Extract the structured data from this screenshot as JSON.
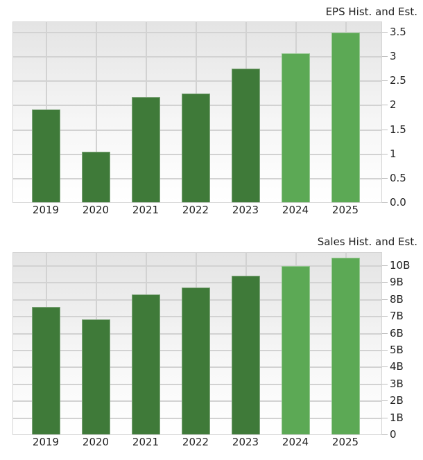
{
  "colors": {
    "historical": "#3f7a39",
    "estimate": "#5ca955",
    "grid": "#d2d2d2"
  },
  "chart_data": [
    {
      "type": "bar",
      "title": "EPS Hist. and Est.",
      "xlabel": "",
      "ylabel": "",
      "categories": [
        "2019",
        "2020",
        "2021",
        "2022",
        "2023",
        "2024",
        "2025"
      ],
      "values": [
        1.9,
        1.04,
        2.16,
        2.24,
        2.75,
        3.06,
        3.49
      ],
      "estimate_flags": [
        false,
        false,
        false,
        false,
        false,
        true,
        true
      ],
      "yticks": [
        "0.0",
        "0.5",
        "1",
        "1.5",
        "2",
        "2.5",
        "3",
        "3.5"
      ],
      "ylim": [
        0,
        3.6
      ],
      "grid": true,
      "y_axis_position": "right"
    },
    {
      "type": "bar",
      "title": "Sales Hist. and Est.",
      "xlabel": "",
      "ylabel": "",
      "categories": [
        "2019",
        "2020",
        "2021",
        "2022",
        "2023",
        "2024",
        "2025"
      ],
      "values": [
        7.54,
        6.8,
        8.26,
        8.67,
        9.39,
        9.96,
        10.46
      ],
      "units": "B",
      "estimate_flags": [
        false,
        false,
        false,
        false,
        false,
        true,
        true
      ],
      "yticks": [
        "0",
        "1B",
        "2B",
        "3B",
        "4B",
        "5B",
        "6B",
        "7B",
        "8B",
        "9B",
        "10B"
      ],
      "ylim": [
        0,
        10.8
      ],
      "grid": true,
      "y_axis_position": "right"
    }
  ]
}
